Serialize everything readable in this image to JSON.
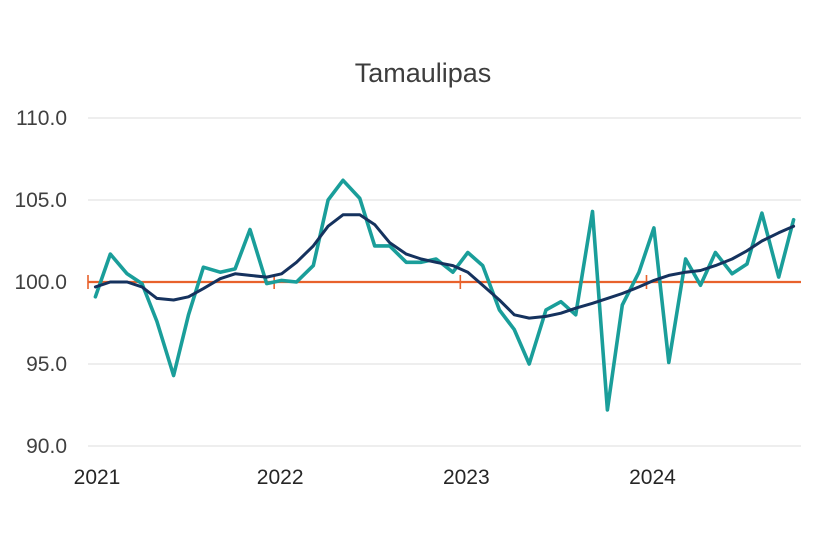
{
  "chart_data": {
    "type": "line",
    "title": "Tamaulipas",
    "xlabel": "",
    "ylabel": "",
    "ylim": [
      90,
      110
    ],
    "yticks": [
      90,
      95,
      100,
      105,
      110
    ],
    "ytick_labels": [
      "90.0",
      "95.0",
      "100.0",
      "105.0",
      "110.0"
    ],
    "xlim": [
      2021,
      2024.83
    ],
    "xticks": [
      2021,
      2022,
      2023,
      2024
    ],
    "xtick_labels": [
      "2021",
      "2022",
      "2023",
      "2024"
    ],
    "grid": true,
    "legend": "none",
    "reference_line": {
      "y": 100,
      "color": "#e8622c"
    },
    "series": [
      {
        "color": "#1a9e9a",
        "x": [
          2021.04,
          2021.12,
          2021.21,
          2021.29,
          2021.37,
          2021.46,
          2021.54,
          2021.62,
          2021.71,
          2021.79,
          2021.87,
          2021.96,
          2022.04,
          2022.12,
          2022.21,
          2022.29,
          2022.37,
          2022.46,
          2022.54,
          2022.62,
          2022.71,
          2022.79,
          2022.87,
          2022.96,
          2023.04,
          2023.12,
          2023.21,
          2023.29,
          2023.37,
          2023.46,
          2023.54,
          2023.62,
          2023.71,
          2023.79,
          2023.87,
          2023.96,
          2024.04,
          2024.12,
          2024.21,
          2024.29,
          2024.37,
          2024.46,
          2024.54,
          2024.62,
          2024.71,
          2024.79
        ],
        "values": [
          99.1,
          101.7,
          100.5,
          99.9,
          97.6,
          94.3,
          98.0,
          100.9,
          100.6,
          100.8,
          103.2,
          99.9,
          100.1,
          100.0,
          101.0,
          105.0,
          106.2,
          105.1,
          102.2,
          102.2,
          101.2,
          101.2,
          101.4,
          100.6,
          101.8,
          101.0,
          98.3,
          97.1,
          95.0,
          98.3,
          98.8,
          98.0,
          104.3,
          92.2,
          98.6,
          100.6,
          103.3,
          95.1,
          101.4,
          99.8,
          101.8,
          100.5,
          101.1,
          104.2,
          100.3,
          103.8
        ]
      },
      {
        "color": "#15325e",
        "x": [
          2021.04,
          2021.12,
          2021.21,
          2021.29,
          2021.37,
          2021.46,
          2021.54,
          2021.62,
          2021.71,
          2021.79,
          2021.87,
          2021.96,
          2022.04,
          2022.12,
          2022.21,
          2022.29,
          2022.37,
          2022.46,
          2022.54,
          2022.62,
          2022.71,
          2022.79,
          2022.87,
          2022.96,
          2023.04,
          2023.12,
          2023.21,
          2023.29,
          2023.37,
          2023.46,
          2023.54,
          2023.62,
          2023.71,
          2023.79,
          2023.87,
          2023.96,
          2024.04,
          2024.12,
          2024.21,
          2024.29,
          2024.37,
          2024.46,
          2024.54,
          2024.62,
          2024.71,
          2024.79
        ],
        "values": [
          99.7,
          100.0,
          100.0,
          99.7,
          99.0,
          98.9,
          99.1,
          99.6,
          100.2,
          100.5,
          100.4,
          100.3,
          100.5,
          101.2,
          102.2,
          103.4,
          104.1,
          104.1,
          103.5,
          102.4,
          101.7,
          101.4,
          101.2,
          101.0,
          100.6,
          99.8,
          98.9,
          98.0,
          97.8,
          97.9,
          98.1,
          98.4,
          98.7,
          99.0,
          99.3,
          99.7,
          100.1,
          100.4,
          100.6,
          100.7,
          101.0,
          101.4,
          101.9,
          102.5,
          103.0,
          103.4
        ]
      }
    ]
  }
}
